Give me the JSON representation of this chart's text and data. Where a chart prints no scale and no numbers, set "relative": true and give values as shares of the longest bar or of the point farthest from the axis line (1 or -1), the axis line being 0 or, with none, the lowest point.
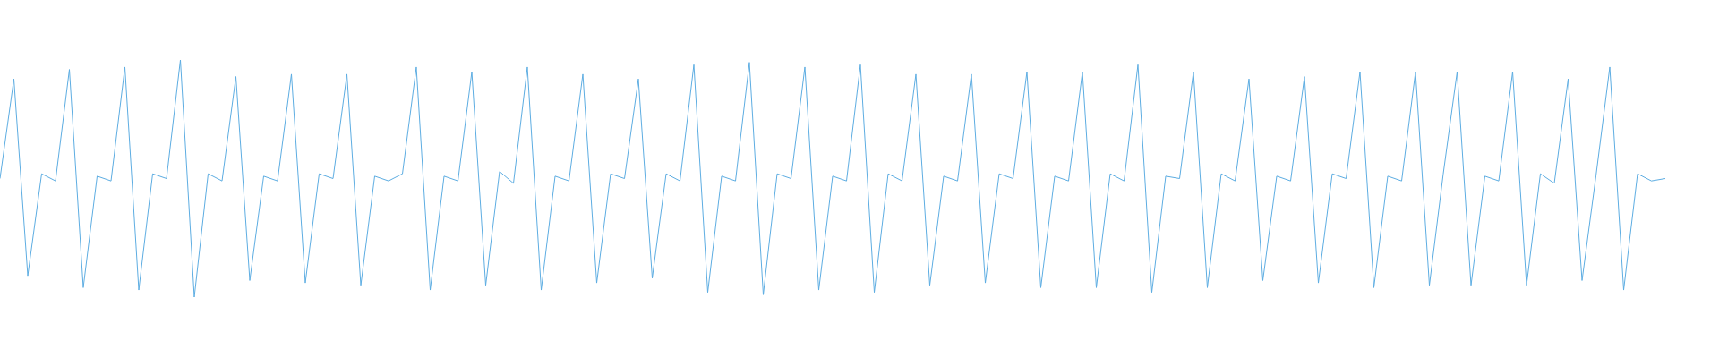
{
  "chart_data": {
    "type": "line",
    "relative": true,
    "categories": [
      null,
      null,
      null,
      null,
      null,
      null,
      null,
      null,
      null,
      null,
      null,
      null,
      null,
      null,
      null,
      null,
      null,
      null,
      null,
      null,
      null,
      null,
      null,
      null,
      null,
      null,
      null,
      null,
      null,
      null,
      null,
      null,
      null,
      null,
      null,
      null,
      null,
      null,
      null,
      null,
      null,
      null,
      null,
      null,
      null,
      null,
      null,
      null,
      null,
      null,
      null,
      null,
      null,
      null,
      null,
      null,
      null,
      null,
      null,
      null,
      null,
      null,
      null,
      null,
      null,
      null,
      null,
      null,
      null,
      null,
      null,
      null,
      null,
      null,
      null,
      null,
      null,
      null,
      null,
      null,
      null,
      null,
      null,
      null,
      null,
      null,
      null,
      null,
      null,
      null,
      null,
      null,
      null,
      null,
      null,
      null,
      null,
      null,
      null,
      null,
      null,
      null,
      null,
      null,
      null,
      null,
      null,
      null,
      null,
      null,
      null,
      null,
      null,
      null,
      null,
      null,
      null,
      null,
      null,
      null,
      null
    ],
    "series": [
      {
        "color": "#5dade2",
        "values": [
          0.5,
          0.92,
          0.09,
          0.52,
          0.49,
          0.96,
          0.04,
          0.51,
          0.49,
          0.97,
          0.03,
          0.52,
          0.5,
          1,
          0,
          0.52,
          0.49,
          0.93,
          0.07,
          0.51,
          0.49,
          0.94,
          0.06,
          0.52,
          0.5,
          0.94,
          0.05,
          0.51,
          0.49,
          0.52,
          0.97,
          0.03,
          0.51,
          0.49,
          0.95,
          0.05,
          0.53,
          0.48,
          0.97,
          0.03,
          0.51,
          0.49,
          0.94,
          0.06,
          0.52,
          0.5,
          0.92,
          0.08,
          0.52,
          0.49,
          0.98,
          0.02,
          0.51,
          0.49,
          0.99,
          0.01,
          0.52,
          0.5,
          0.97,
          0.03,
          0.51,
          0.49,
          0.98,
          0.02,
          0.52,
          0.49,
          0.94,
          0.05,
          0.51,
          0.49,
          0.94,
          0.06,
          0.52,
          0.5,
          0.95,
          0.04,
          0.51,
          0.49,
          0.95,
          0.04,
          0.52,
          0.49,
          0.98,
          0.02,
          0.51,
          0.5,
          0.95,
          0.04,
          0.52,
          0.49,
          0.92,
          0.07,
          0.51,
          0.49,
          0.93,
          0.06,
          0.52,
          0.5,
          0.95,
          0.04,
          0.51,
          0.49,
          0.95,
          0.05,
          0.52,
          0.95,
          0.05,
          0.51,
          0.49,
          0.95,
          0.05,
          0.52,
          0.48,
          0.92,
          0.07,
          0.51,
          0.97,
          0.03,
          0.52,
          0.49,
          0.5
        ]
      }
    ]
  }
}
